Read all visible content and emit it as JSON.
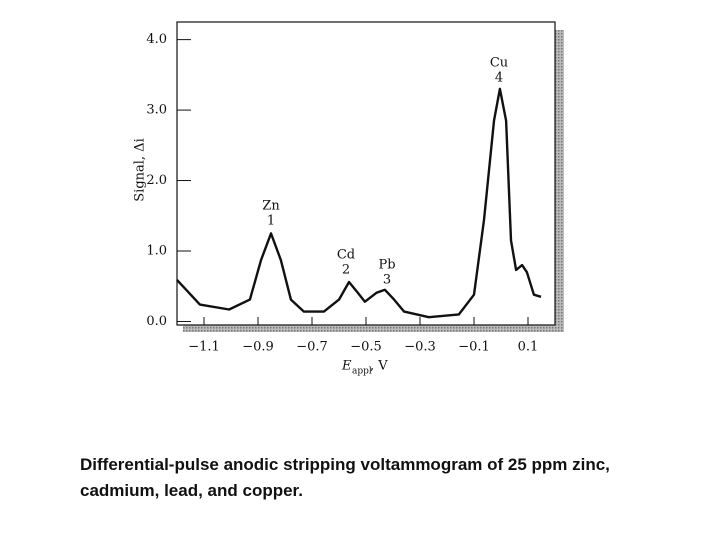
{
  "chart_data": {
    "type": "line",
    "y_label": "Signal, Δi",
    "x_label": {
      "symbol": "E",
      "subscript": "appl",
      "unit": ", V"
    },
    "x": [
      -1.2,
      -1.115,
      -1.007,
      -0.93,
      -0.889,
      -0.852,
      -0.815,
      -0.778,
      -0.73,
      -0.656,
      -0.6,
      -0.563,
      -0.533,
      -0.504,
      -0.46,
      -0.43,
      -0.396,
      -0.359,
      -0.267,
      -0.156,
      -0.1,
      -0.063,
      -0.026,
      -0.004,
      0.019,
      0.037,
      0.056,
      0.078,
      0.096,
      0.122,
      0.148
    ],
    "series": [
      {
        "color": "#111111",
        "values": [
          0.59,
          0.24,
          0.17,
          0.31,
          0.87,
          1.25,
          0.87,
          0.31,
          0.14,
          0.14,
          0.31,
          0.56,
          0.42,
          0.28,
          0.41,
          0.45,
          0.31,
          0.14,
          0.06,
          0.1,
          0.38,
          1.44,
          2.85,
          3.3,
          2.85,
          1.15,
          0.73,
          0.8,
          0.7,
          0.38,
          0.35
        ]
      }
    ],
    "xlim": [
      -1.2,
      0.2
    ],
    "ylim": [
      -0.05,
      4.25
    ],
    "xticks": [
      {
        "value": -1.1,
        "label": "−1.1"
      },
      {
        "value": -0.9,
        "label": "−0.9"
      },
      {
        "value": -0.7,
        "label": "−0.7"
      },
      {
        "value": -0.5,
        "label": "−0.5"
      },
      {
        "value": -0.3,
        "label": "−0.3"
      },
      {
        "value": -0.1,
        "label": "−0.1"
      },
      {
        "value": 0.1,
        "label": "0.1"
      }
    ],
    "yticks": [
      {
        "value": 0,
        "label": "0.0"
      },
      {
        "value": 1,
        "label": "1.0"
      },
      {
        "value": 2,
        "label": "2.0"
      },
      {
        "value": 3,
        "label": "3.0"
      },
      {
        "value": 4,
        "label": "4.0"
      }
    ],
    "annotations": [
      {
        "element": "Zn",
        "number": "1"
      },
      {
        "element": "Cd",
        "number": "2"
      },
      {
        "element": "Pb",
        "number": "3"
      },
      {
        "element": "Cu",
        "number": "4"
      }
    ]
  },
  "caption": "Differential-pulse anodic stripping voltammogram of 25 ppm zinc, cadmium, lead, and copper."
}
